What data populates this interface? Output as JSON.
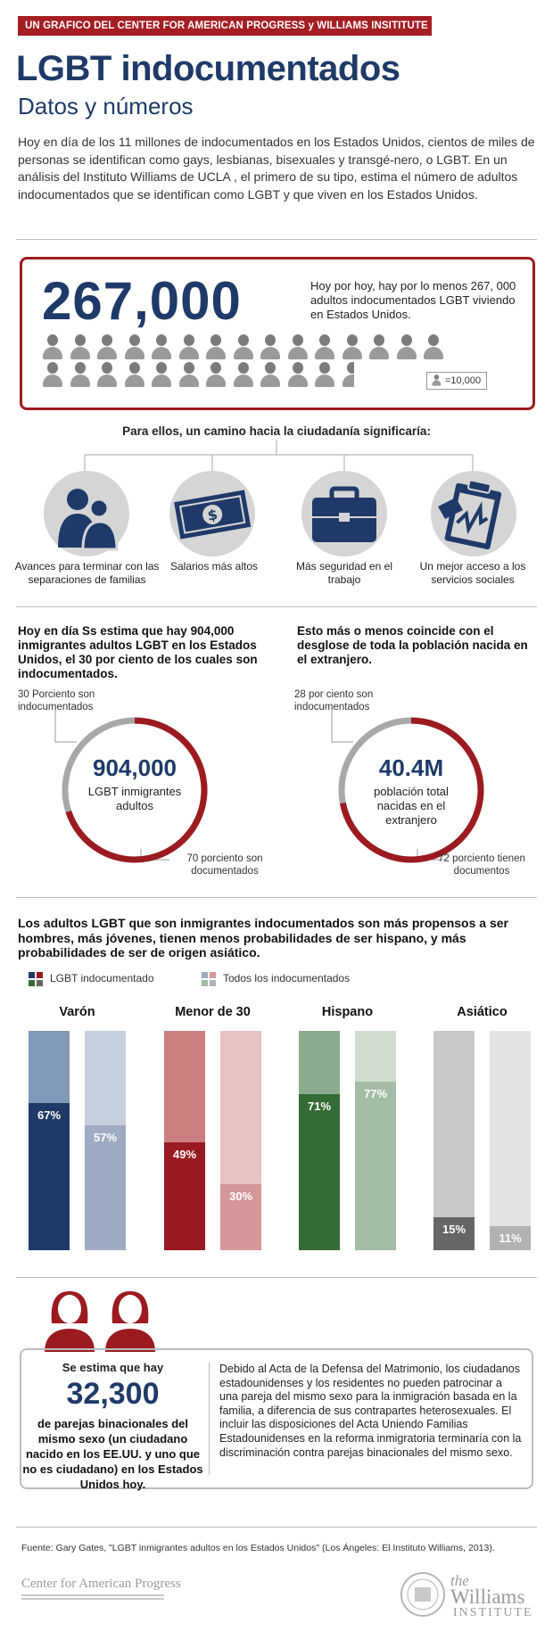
{
  "header": {
    "banner": "UN GRAFICO DEL CENTER FOR AMERICAN PROGRESS y WILLIAMS INSITITUTE",
    "title": "LGBT indocumentados",
    "subtitle": "Datos y números",
    "intro": "Hoy en día de los 11 millones de indocumentados en los Estados Unidos, cientos de miles de personas se identifican como gays, lesbianas, bisexuales y transgé-nero, o LGBT. En un análisis del Instituto Williams de UCLA , el primero de su tipo, estima el número de adultos indocumentados que se identifican como LGBT y que viven en los Estados Unidos."
  },
  "stat": {
    "number": "267,000",
    "text": "Hoy por hoy, hay por lo menos 267, 000 adultos indocumentados LGBT viviendo en Estados Unidos.",
    "legend": "=10,000",
    "icon_count": 26.7
  },
  "path": {
    "title": "Para ellos, un camino hacia  la ciudadanía significaría:",
    "items": [
      {
        "icon": "family-icon",
        "label": "Avances para terminar con las separaciones de familias"
      },
      {
        "icon": "money-icon",
        "label": "Salarios más altos"
      },
      {
        "icon": "briefcase-icon",
        "label": "Más seguridad en el trabajo"
      },
      {
        "icon": "clipboard-icon",
        "label": "Un mejor acceso a los servicios sociales"
      }
    ]
  },
  "rings": [
    {
      "heading": "Hoy en día Ss estima que hay 904,000 inmigrantes adultos LGBT en los Estados Unidos, el 30 por ciento de los cuales son indocumentados.",
      "top_note": "30 Porciento son indocumentados",
      "number": "904,000",
      "label": "LGBT inmigrantes adultos",
      "bottom_note": "70 porciento son documentados",
      "red_fraction": 0.7
    },
    {
      "heading": "Esto más o menos coincide con el desglose de toda la población nacida en el extranjero.",
      "top_note": "28 por ciento son indocumentados",
      "number": "40.4M",
      "label": "población total nacidas en el extranjero",
      "bottom_note": "72 porciento tienen documentos",
      "red_fraction": 0.72
    }
  ],
  "bars": {
    "heading": "Los adultos LGBT que son inmigrantes indocumentados son más propensos a ser hombres, más jóvenes, tienen menos probabilidades de ser hispano, y más probabilidades de ser de origen asiático.",
    "legend": [
      "LGBT indocumentado",
      "Todos los indocumentados"
    ]
  },
  "chart_data": {
    "type": "bar",
    "categories": [
      "Varón",
      "Menor de 30",
      "Hispano",
      "Asiático"
    ],
    "series": [
      {
        "name": "LGBT indocumentado",
        "values": [
          67,
          49,
          71,
          15
        ]
      },
      {
        "name": "Todos los indocumentados",
        "values": [
          57,
          30,
          77,
          11
        ]
      }
    ],
    "value_labels": [
      [
        "67%",
        "57%"
      ],
      [
        "49%",
        "30%"
      ],
      [
        "71%",
        "77%"
      ],
      [
        "15%",
        "11%"
      ]
    ],
    "ylim": [
      0,
      100
    ],
    "colors": {
      "Varón": [
        "#1e3a66",
        "#9eabc2",
        "#8199b6",
        "#c5d0dd"
      ],
      "Menor de 30": [
        "#9a1a21",
        "#d5979a",
        "#cc7d7f",
        "#e6c2c3"
      ],
      "Hispano": [
        "#356b35",
        "#a3bca3",
        "#8eaa8e",
        "#cfdccf"
      ],
      "Asiático": [
        "#666666",
        "#b2b2b2",
        "#c9c9c9",
        "#e4e4e4"
      ]
    }
  },
  "couples": {
    "pre": "Se estima que hay",
    "number": "32,300",
    "desc": "de parejas binacionales del mismo sexo (un ciudadano nacido en los EE.UU. y uno que no es ciudadano) en los Estados Unidos hoy.",
    "body": "Debido al Acta de la Defensa del Matrimonio, los ciudadanos estadounidenses y los residentes no pueden patrocinar a una pareja del mismo sexo para la inmigración basada en la familia, a diferencia de sus contrapartes heterosexuales. El incluir  las disposiciones del Acta Uniendo Familias Estadounidenses en la reforma  inmigratoria terminaría con la discriminación contra parejas binacionales del mismo sexo."
  },
  "footer": {
    "source": "Fuente: Gary Gates, \"LGBT inmigrantes adultos en los Estados Unidos\" (Los Ángeles: El Instituto Williams, 2013).",
    "cap_logo": "Center for American Progress",
    "wi_logo_the": "the",
    "wi_logo_name": "Williams",
    "wi_logo_inst": "INSTITUTE"
  },
  "colors": {
    "navy": "#1f3a68",
    "red": "#9b1b20",
    "banner": "#a51e22"
  }
}
